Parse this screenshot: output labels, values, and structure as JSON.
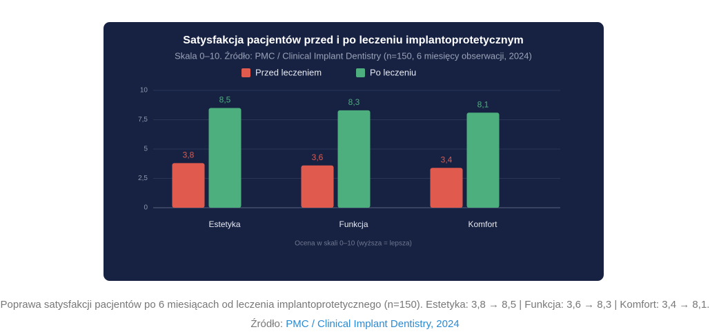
{
  "chart_data": {
    "type": "bar",
    "title": "Satysfakcja pacjentów przed i po leczeniu implantoprotetycznym",
    "subtitle": "Skala 0–10. Źródło: PMC / Clinical Implant Dentistry (n=150, 6 miesięcy obserwacji, 2024)",
    "x_label": "Ocena w skali 0–10 (wyższa = lepsza)",
    "categories": [
      "Estetyka",
      "Funkcja",
      "Komfort"
    ],
    "series": [
      {
        "name": "Przed leczeniem",
        "color": "#e05a4e",
        "values": [
          3.8,
          3.6,
          3.4
        ],
        "value_labels": [
          "3,8",
          "3,6",
          "3,4"
        ]
      },
      {
        "name": "Po leczeniu",
        "color": "#4caf7d",
        "values": [
          8.5,
          8.3,
          8.1
        ],
        "value_labels": [
          "8,5",
          "8,3",
          "8,1"
        ]
      }
    ],
    "ylim": [
      0,
      10
    ],
    "yticks": [
      0,
      {
        "value": 2.5,
        "label": "2,5"
      },
      5,
      {
        "value": 7.5,
        "label": "7,5"
      },
      10
    ],
    "grid": true
  },
  "caption": {
    "text": "Poprawa satysfakcji pacjentów po 6 miesiącach od leczenia implantoprotetycznego (n=150). Estetyka: 3,8 → 8,5 | Funkcja: 3,6 → 8,3 | Komfort: 3,4 → 8,1. Źródło:",
    "link": "PMC / Clinical Implant Dentistry, 2024"
  }
}
